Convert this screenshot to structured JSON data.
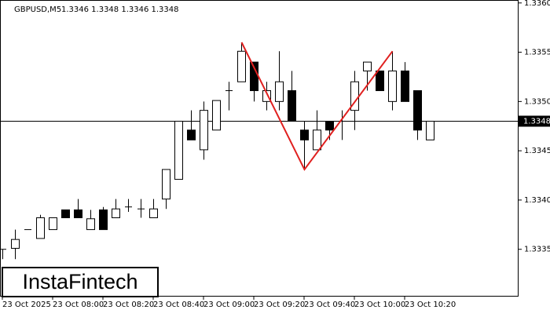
{
  "chart_data": {
    "type": "candlestick",
    "symbol": "GBPUSD,M5",
    "ohlc_text": "1.3346 1.3348 1.3346 1.3348",
    "categories": [
      "23 Oct 2025",
      null,
      null,
      null,
      "23 Oct 08:00",
      null,
      null,
      null,
      "23 Oct 08:20",
      null,
      null,
      null,
      "23 Oct 08:40",
      null,
      null,
      null,
      "23 Oct 09:00",
      null,
      null,
      null,
      "23 Oct 09:20",
      null,
      null,
      null,
      "23 Oct 09:40",
      null,
      null,
      null,
      "23 Oct 10:00",
      null,
      null,
      null,
      "23 Oct 10:20",
      null,
      null
    ],
    "open": [
      1.3335,
      1.33351,
      1.3337,
      1.33361,
      1.3337,
      1.3339,
      1.3339,
      1.3337,
      1.3339,
      1.33382,
      1.33393,
      1.33391,
      1.33382,
      1.33401,
      1.33421,
      1.33471,
      1.33451,
      1.33471,
      1.33511,
      1.3352,
      1.3354,
      1.335,
      1.335,
      1.33511,
      1.33471,
      1.33451,
      1.3348,
      1.3348,
      1.33491,
      1.33531,
      1.33531,
      1.335,
      1.33531,
      1.33511,
      1.33461
    ],
    "high": [
      1.3335,
      1.3337,
      1.3337,
      1.33385,
      1.33382,
      1.3339,
      1.33401,
      1.3339,
      1.33393,
      1.33401,
      1.33401,
      1.33401,
      1.33401,
      1.33431,
      1.3348,
      1.33491,
      1.335,
      1.33501,
      1.3352,
      1.3356,
      1.3354,
      1.3352,
      1.33551,
      1.33531,
      1.3348,
      1.33491,
      1.3348,
      1.33491,
      1.33531,
      1.3354,
      1.33531,
      1.33551,
      1.3354,
      1.33511,
      1.3348
    ],
    "low": [
      1.3334,
      1.3334,
      1.3337,
      1.33361,
      1.3337,
      1.33382,
      1.33382,
      1.3337,
      1.3337,
      1.33382,
      1.33388,
      1.33382,
      1.33382,
      1.33391,
      1.33421,
      1.33461,
      1.33441,
      1.33471,
      1.33491,
      1.3352,
      1.335,
      1.33491,
      1.33491,
      1.3348,
      1.33431,
      1.33451,
      1.33461,
      1.33461,
      1.33471,
      1.33511,
      1.33511,
      1.33491,
      1.335,
      1.33461,
      1.33461
    ],
    "close": [
      1.3335,
      1.3336,
      1.3337,
      1.33382,
      1.33382,
      1.33382,
      1.33382,
      1.33381,
      1.3337,
      1.33391,
      1.33393,
      1.33391,
      1.33391,
      1.33431,
      1.3348,
      1.33461,
      1.33491,
      1.33501,
      1.33511,
      1.33551,
      1.33511,
      1.33511,
      1.3352,
      1.3348,
      1.33461,
      1.33471,
      1.33471,
      1.3348,
      1.3352,
      1.3354,
      1.33511,
      1.33531,
      1.335,
      1.33471,
      1.3348
    ],
    "up_color": "#ffffff",
    "down_color": "#000000",
    "last_price": 1.3348,
    "pattern": {
      "color": "#e0201f",
      "points": [
        {
          "candle": 19,
          "value": 1.3356
        },
        {
          "candle": 24,
          "value": 1.33431
        },
        {
          "candle": 31,
          "value": 1.33551
        }
      ]
    },
    "ylim": [
      1.33302,
      1.33603
    ],
    "yticks": [
      1.3335,
      {
        "value": 1.334,
        "label": "1.3340"
      },
      1.3345,
      {
        "value": 1.335,
        "label": "1.3350"
      },
      1.3355,
      {
        "value": 1.336,
        "label": "1.3360"
      }
    ],
    "grid": false,
    "logo": "InstaFintech"
  }
}
